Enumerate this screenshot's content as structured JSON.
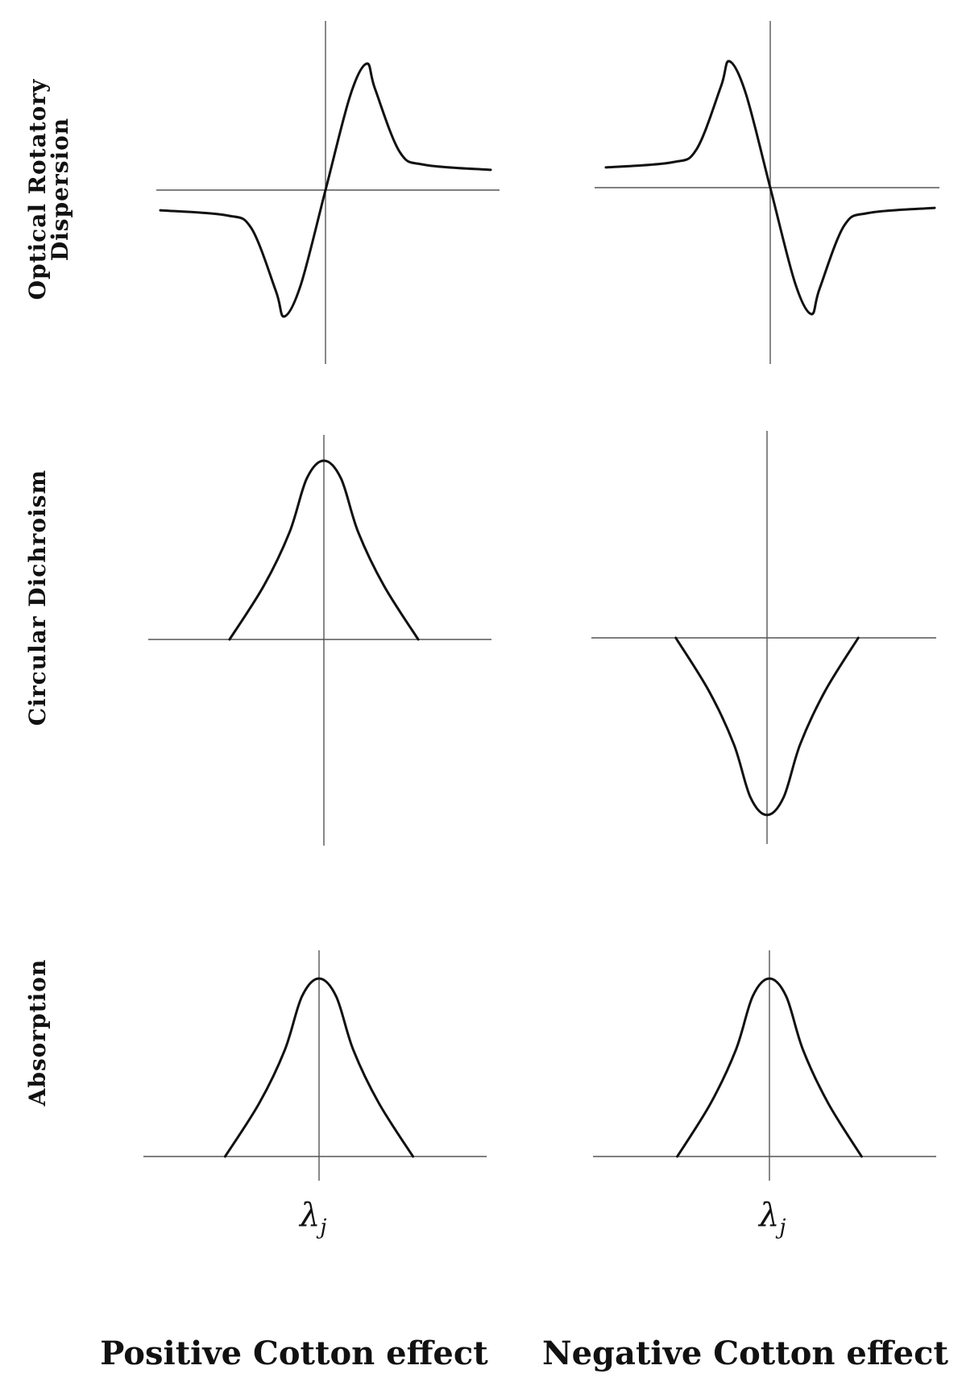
{
  "chart_data": [
    {
      "type": "line",
      "row": "Optical Rotatory Dispersion",
      "column": "Positive Cotton effect",
      "series": [
        {
          "x": [
            -1.0,
            -0.6,
            -0.45,
            -0.3,
            -0.25,
            -0.15,
            0.0,
            0.15,
            0.25,
            0.3,
            0.45,
            0.6,
            1.0
          ],
          "y": [
            -0.16,
            -0.2,
            -0.3,
            -0.8,
            -1.0,
            -0.75,
            0.0,
            0.75,
            1.0,
            0.8,
            0.3,
            0.2,
            0.16
          ]
        }
      ]
    },
    {
      "type": "line",
      "row": "Optical Rotatory Dispersion",
      "column": "Negative Cotton effect",
      "series": [
        {
          "x": [
            -1.0,
            -0.6,
            -0.45,
            -0.3,
            -0.25,
            -0.15,
            0.0,
            0.15,
            0.25,
            0.3,
            0.45,
            0.6,
            1.0
          ],
          "y": [
            0.16,
            0.2,
            0.3,
            0.8,
            1.0,
            0.75,
            0.0,
            -0.75,
            -1.0,
            -0.8,
            -0.3,
            -0.2,
            -0.16
          ]
        }
      ]
    },
    {
      "type": "line",
      "row": "Circular Dichroism",
      "column": "Positive Cotton effect",
      "series": [
        {
          "x": [
            -0.55,
            -0.35,
            -0.2,
            -0.1,
            0.0,
            0.1,
            0.2,
            0.35,
            0.55
          ],
          "y": [
            0.0,
            0.3,
            0.6,
            0.9,
            1.0,
            0.9,
            0.6,
            0.3,
            0.0
          ]
        }
      ]
    },
    {
      "type": "line",
      "row": "Circular Dichroism",
      "column": "Negative Cotton effect",
      "series": [
        {
          "x": [
            -0.55,
            -0.35,
            -0.2,
            -0.1,
            0.0,
            0.1,
            0.2,
            0.35,
            0.55
          ],
          "y": [
            0.0,
            -0.3,
            -0.6,
            -0.9,
            -1.0,
            -0.9,
            -0.6,
            -0.3,
            0.0
          ]
        }
      ]
    },
    {
      "type": "line",
      "row": "Absorption",
      "column": "Positive Cotton effect",
      "series": [
        {
          "x": [
            -0.55,
            -0.35,
            -0.2,
            -0.1,
            0.0,
            0.1,
            0.2,
            0.35,
            0.55
          ],
          "y": [
            0.0,
            0.3,
            0.6,
            0.9,
            1.0,
            0.9,
            0.6,
            0.3,
            0.0
          ]
        }
      ],
      "x_tick_label": "λj"
    },
    {
      "type": "line",
      "row": "Absorption",
      "column": "Negative Cotton effect",
      "series": [
        {
          "x": [
            -0.55,
            -0.35,
            -0.2,
            -0.1,
            0.0,
            0.1,
            0.2,
            0.35,
            0.55
          ],
          "y": [
            0.0,
            0.3,
            0.6,
            0.9,
            1.0,
            0.9,
            0.6,
            0.3,
            0.0
          ]
        }
      ],
      "x_tick_label": "λj"
    }
  ],
  "labels": {
    "row_ord_line1": "Optical Rotatory",
    "row_ord_line2": "Dispersion",
    "row_cd": "Circular Dichroism",
    "row_abs": "Absorption",
    "col_positive": "Positive Cotton effect",
    "col_negative": "Negative Cotton effect",
    "xtick_main": "λ",
    "xtick_sub": "j"
  },
  "colors": {
    "curve": "#111111",
    "axis": "#555555"
  }
}
